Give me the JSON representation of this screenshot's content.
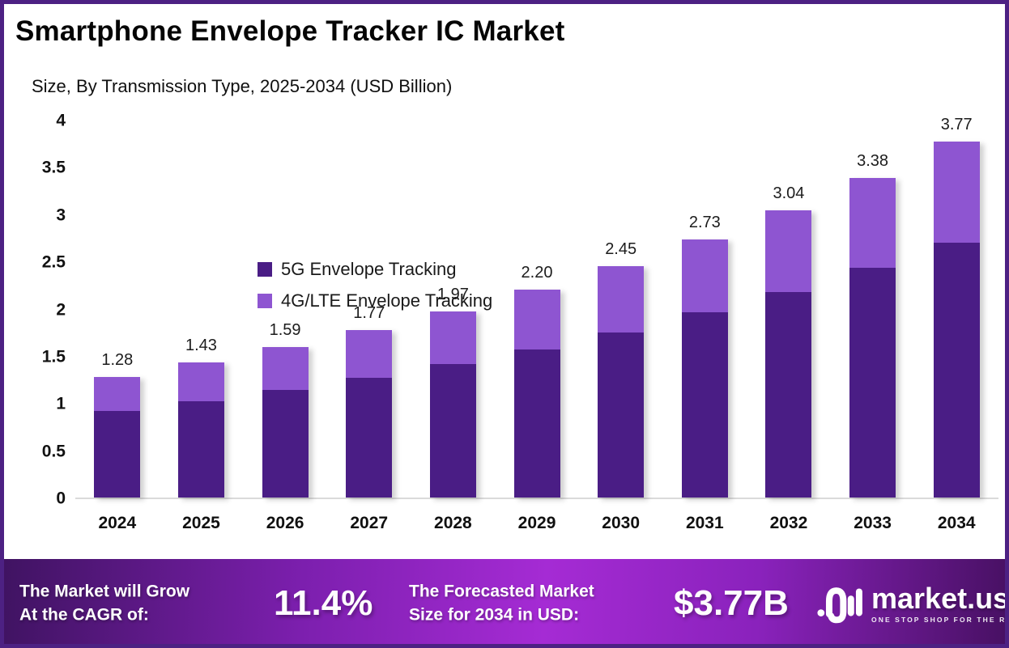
{
  "page": {
    "border_color": "#4D2183",
    "background": "#ffffff"
  },
  "header": {
    "title": "Smartphone Envelope Tracker IC Market",
    "subtitle": "Size, By Transmission Type, 2025-2034 (USD Billion)"
  },
  "chart_data": {
    "type": "bar",
    "stacked": true,
    "title": "Smartphone Envelope Tracker IC Market",
    "subtitle": "Size, By Transmission Type, 2025-2034 (USD Billion)",
    "unit": "USD Billion",
    "categories": [
      "2024",
      "2025",
      "2026",
      "2027",
      "2028",
      "2029",
      "2030",
      "2031",
      "2032",
      "2033",
      "2034"
    ],
    "series": [
      {
        "name": "5G Envelope Tracking",
        "color": "#4A1D85",
        "values": [
          0.92,
          1.02,
          1.14,
          1.27,
          1.41,
          1.57,
          1.75,
          1.96,
          2.18,
          2.43,
          2.7
        ]
      },
      {
        "name": "4G/LTE Envelope Tracking",
        "color": "#8E55D1",
        "values": [
          0.36,
          0.41,
          0.45,
          0.5,
          0.56,
          0.63,
          0.7,
          0.77,
          0.86,
          0.95,
          1.07
        ]
      }
    ],
    "totals_labels": [
      "1.28",
      "1.43",
      "1.59",
      "1.77",
      "1.97",
      "2.20",
      "2.45",
      "2.73",
      "3.04",
      "3.38",
      "3.77"
    ],
    "ylim": [
      0,
      4
    ],
    "yticks": [
      "4",
      "3.5",
      "3",
      "2.5",
      "2",
      "1.5",
      "1",
      "0.5",
      "0"
    ],
    "grid": false,
    "legend_position": "inside-top-left"
  },
  "footer": {
    "cagr_label_line1": "The Market will Grow",
    "cagr_label_line2": "At the CAGR of:",
    "cagr_value": "11.4%",
    "forecast_label_line1": "The Forecasted Market",
    "forecast_label_line2": "Size for 2034 in USD:",
    "forecast_value": "$3.77B",
    "brand": {
      "name": "market.us",
      "tagline": "ONE STOP SHOP FOR THE REPORTS"
    },
    "gradient": [
      "#3F1361",
      "#A52BD4",
      "#471062"
    ]
  }
}
